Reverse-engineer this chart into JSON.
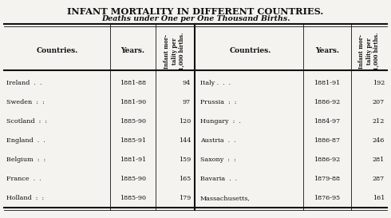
{
  "title": "Infant Mortality in Different Countries.",
  "subtitle": "Deaths under One per One Thousand Births.",
  "left_data": [
    {
      "country": "Ireland  .  .",
      "years": "1881-88",
      "value": "94"
    },
    {
      "country": "Sweden  :  :",
      "years": "1881-90",
      "value": "97"
    },
    {
      "country": "Scotland  :  :",
      "years": "1885-90",
      "value": "120"
    },
    {
      "country": "England  .  .",
      "years": "1885-91",
      "value": "144"
    },
    {
      "country": "Belgium  :  :",
      "years": "1881-91",
      "value": "159"
    },
    {
      "country": "France  .  .",
      "years": "1885-90",
      "value": "165"
    },
    {
      "country": "Holland  :  :",
      "years": "1885-90",
      "value": "179"
    }
  ],
  "right_data": [
    {
      "country": "Italy .  .  .",
      "years": "1881-91",
      "value": "192"
    },
    {
      "country": "Prussia  :  :",
      "years": "1886-92",
      "value": "207"
    },
    {
      "country": "Hungary  :  .",
      "years": "1884-97",
      "value": "212"
    },
    {
      "country": "Austria  .  .",
      "years": "1886-87",
      "value": "246"
    },
    {
      "country": "Saxony  :  :",
      "years": "1886-92",
      "value": "281"
    },
    {
      "country": "Bavaria  .  .",
      "years": "1879-88",
      "value": "287"
    },
    {
      "country": "Massachusetts,",
      "years": "1876-95",
      "value": "161"
    }
  ],
  "bg_color": "#f5f3ef",
  "text_color": "#111111",
  "header_rotated": "Infant mor-\ntality per\n1,000 births."
}
